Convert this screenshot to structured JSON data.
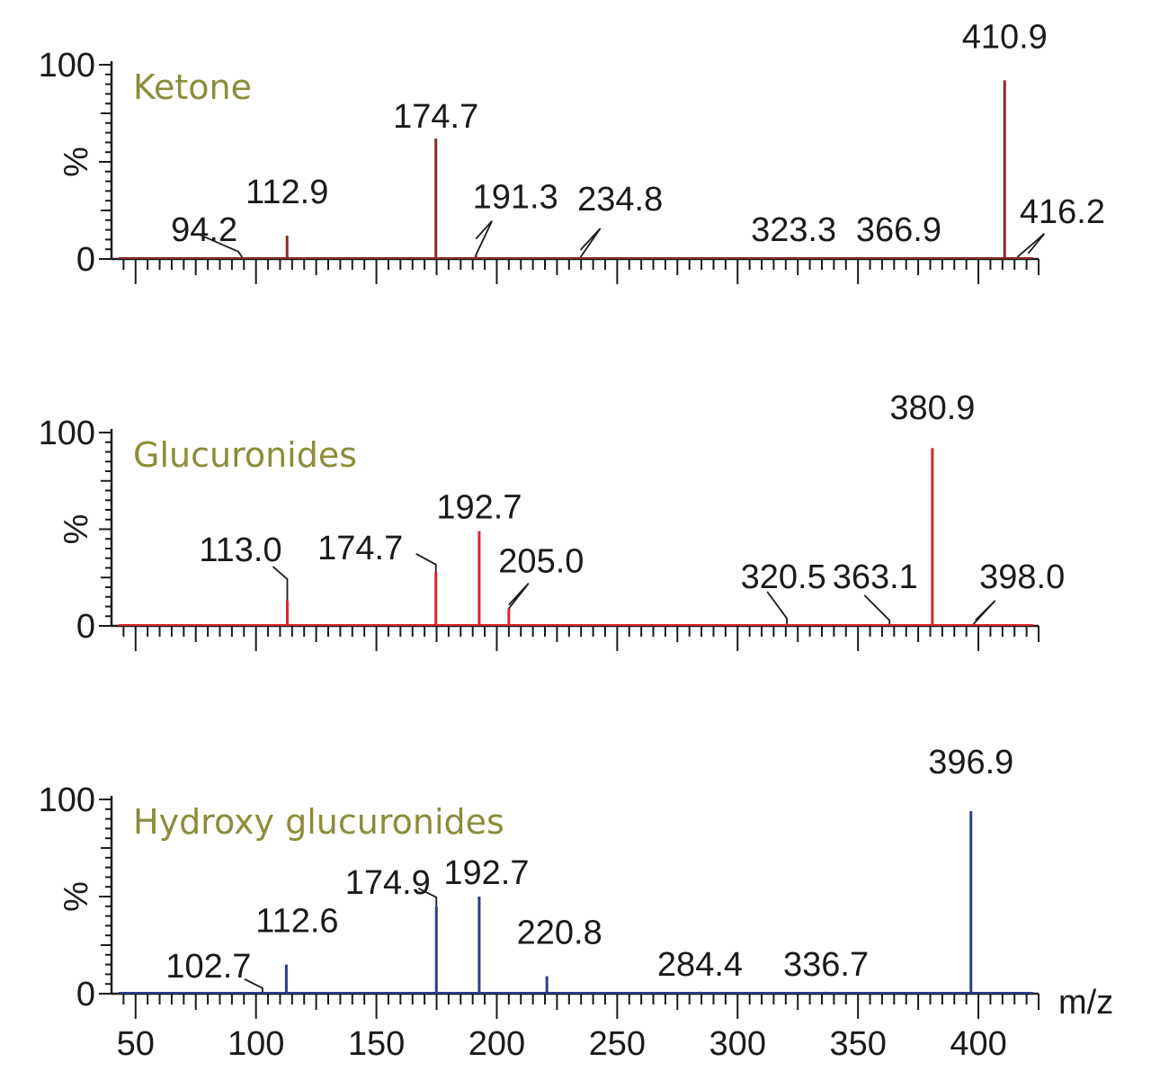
{
  "colors": {
    "title": "#8c8c3a",
    "panels": [
      "#8b2a22",
      "#d9262c",
      "#2c3d8f"
    ]
  },
  "chart_data": [
    {
      "type": "bar",
      "title": "Ketone",
      "xlabel": "",
      "ylabel": "%",
      "xlim": [
        40,
        425
      ],
      "ylim": [
        0,
        100
      ],
      "y_ticks": [
        "0",
        "%",
        "100"
      ],
      "peaks": [
        {
          "mz": 94.2,
          "intensity": 1,
          "label": "94.2"
        },
        {
          "mz": 112.9,
          "intensity": 12,
          "label": "112.9"
        },
        {
          "mz": 174.7,
          "intensity": 62,
          "label": "174.7"
        },
        {
          "mz": 191.3,
          "intensity": 2,
          "label": "191.3"
        },
        {
          "mz": 234.8,
          "intensity": 1,
          "label": "234.8"
        },
        {
          "mz": 323.3,
          "intensity": 1,
          "label": "323.3"
        },
        {
          "mz": 366.9,
          "intensity": 1,
          "label": "366.9"
        },
        {
          "mz": 410.9,
          "intensity": 92,
          "label": "410.9"
        },
        {
          "mz": 416.2,
          "intensity": 1,
          "label": "416.2"
        }
      ]
    },
    {
      "type": "bar",
      "title": "Glucuronides",
      "xlabel": "",
      "ylabel": "%",
      "xlim": [
        40,
        425
      ],
      "ylim": [
        0,
        100
      ],
      "y_ticks": [
        "0",
        "%",
        "100"
      ],
      "peaks": [
        {
          "mz": 113.0,
          "intensity": 13,
          "label": "113.0"
        },
        {
          "mz": 174.7,
          "intensity": 28,
          "label": "174.7"
        },
        {
          "mz": 192.7,
          "intensity": 49,
          "label": "192.7"
        },
        {
          "mz": 205.0,
          "intensity": 9,
          "label": "205.0"
        },
        {
          "mz": 320.5,
          "intensity": 1,
          "label": "320.5"
        },
        {
          "mz": 363.1,
          "intensity": 1,
          "label": "363.1"
        },
        {
          "mz": 380.9,
          "intensity": 92,
          "label": "380.9"
        },
        {
          "mz": 398.0,
          "intensity": 1,
          "label": "398.0"
        }
      ]
    },
    {
      "type": "bar",
      "title": "Hydroxy glucuronides",
      "xlabel": "m/z",
      "ylabel": "%",
      "xlim": [
        40,
        425
      ],
      "ylim": [
        0,
        100
      ],
      "y_ticks": [
        "0",
        "%",
        "100"
      ],
      "x_ticks": [
        "50",
        "100",
        "150",
        "200",
        "250",
        "300",
        "350",
        "400"
      ],
      "peaks": [
        {
          "mz": 102.7,
          "intensity": 1,
          "label": "102.7"
        },
        {
          "mz": 112.6,
          "intensity": 15,
          "label": "112.6"
        },
        {
          "mz": 174.9,
          "intensity": 45,
          "label": "174.9"
        },
        {
          "mz": 192.7,
          "intensity": 50,
          "label": "192.7"
        },
        {
          "mz": 220.8,
          "intensity": 9,
          "label": "220.8"
        },
        {
          "mz": 284.4,
          "intensity": 1,
          "label": "284.4"
        },
        {
          "mz": 336.7,
          "intensity": 1,
          "label": "336.7"
        },
        {
          "mz": 396.9,
          "intensity": 94,
          "label": "396.9"
        }
      ]
    }
  ]
}
